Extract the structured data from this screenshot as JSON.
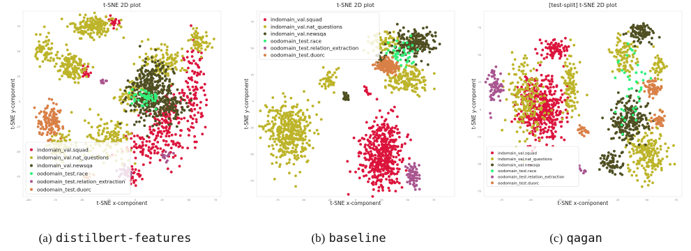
{
  "chart_data": [
    {
      "type": "scatter",
      "title": "t-SNE 2D plot",
      "xlabel": "t-SNE x-component",
      "ylabel": "t-SNE y-component",
      "xlim": [
        -105,
        80
      ],
      "ylim": [
        -95,
        90
      ],
      "x_ticks": [
        -100,
        -75,
        -50,
        -25,
        0,
        25,
        50,
        75
      ],
      "y_ticks": [
        75,
        50,
        25,
        0,
        -25,
        -50,
        -75
      ],
      "legend_loc": "lower-left",
      "caption": {
        "tag": "(a)",
        "name": "distilbert-features"
      },
      "series": [
        {
          "name": "indomain_val.squad",
          "color": "#dc143c",
          "clusters": [
            [
              30,
              -20,
              14,
              30,
              140
            ],
            [
              55,
              10,
              10,
              40,
              110
            ],
            [
              0,
              -75,
              8,
              10,
              25
            ],
            [
              -20,
              80,
              4,
              8,
              15
            ],
            [
              -45,
              30,
              6,
              6,
              18
            ],
            [
              10,
              -45,
              20,
              12,
              80
            ]
          ]
        },
        {
          "name": "indomain_val.nat_questions",
          "color": "#bdb42a",
          "clusters": [
            [
              -40,
              75,
              18,
              10,
              180
            ],
            [
              -60,
              35,
              14,
              14,
              140
            ],
            [
              -85,
              50,
              8,
              14,
              60
            ],
            [
              -25,
              -40,
              20,
              20,
              140
            ],
            [
              -70,
              -45,
              10,
              15,
              70
            ],
            [
              25,
              40,
              20,
              15,
              110
            ],
            [
              60,
              60,
              10,
              12,
              60
            ],
            [
              -5,
              5,
              12,
              12,
              60
            ]
          ]
        },
        {
          "name": "indomain_val.newsqa",
          "color": "#4f4f22",
          "clusters": [
            [
              15,
              10,
              18,
              25,
              380
            ],
            [
              35,
              -5,
              12,
              12,
              80
            ]
          ]
        },
        {
          "name": "oodomain_test.race",
          "color": "#2ef27a",
          "clusters": [
            [
              10,
              5,
              12,
              8,
              45
            ]
          ]
        },
        {
          "name": "oodomain_test.relation_extraction",
          "color": "#a8558f",
          "clusters": [
            [
              -10,
              -70,
              8,
              8,
              28
            ],
            [
              30,
              -55,
              4,
              6,
              12
            ],
            [
              -30,
              20,
              3,
              3,
              8
            ]
          ]
        },
        {
          "name": "oodomain_test.duorc",
          "color": "#d98047",
          "clusters": [
            [
              -80,
              -20,
              11,
              14,
              130
            ],
            [
              -45,
              -75,
              3,
              4,
              10
            ]
          ]
        }
      ]
    },
    {
      "type": "scatter",
      "title": "t-SNE 2D plot",
      "xlabel": "t-SNE x-component",
      "ylabel": "t-SNE y-component",
      "xlim": [
        -95,
        95
      ],
      "ylim": [
        -90,
        85
      ],
      "x_ticks": [
        -75,
        -50,
        -25,
        0,
        25,
        50,
        75
      ],
      "y_ticks": [
        75,
        50,
        25,
        0,
        -25,
        -50,
        -75
      ],
      "legend_loc": "top-left",
      "caption": {
        "tag": "(b)",
        "name": "baseline"
      },
      "series": [
        {
          "name": "indomain_val.squad",
          "color": "#dc143c",
          "clusters": [
            [
              25,
              -50,
              18,
              30,
              480
            ],
            [
              10,
              10,
              3,
              4,
              10
            ]
          ]
        },
        {
          "name": "indomain_val.nat_questions",
          "color": "#bdb42a",
          "clusters": [
            [
              -65,
              -30,
              20,
              25,
              420
            ],
            [
              -25,
              20,
              8,
              8,
              45
            ],
            [
              50,
              20,
              20,
              12,
              160
            ],
            [
              30,
              55,
              15,
              10,
              80
            ]
          ]
        },
        {
          "name": "indomain_val.newsqa",
          "color": "#4f4f22",
          "clusters": [
            [
              55,
              55,
              18,
              12,
              200
            ],
            [
              -10,
              3,
              3,
              4,
              25
            ],
            [
              25,
              40,
              4,
              6,
              20
            ]
          ]
        },
        {
          "name": "oodomain_test.race",
          "color": "#2ef27a",
          "clusters": [
            [
              45,
              45,
              15,
              12,
              45
            ]
          ]
        },
        {
          "name": "oodomain_test.relation_extraction",
          "color": "#a8558f",
          "clusters": [
            [
              55,
              -70,
              5,
              10,
              70
            ]
          ]
        },
        {
          "name": "oodomain_test.duorc",
          "color": "#d98047",
          "clusters": [
            [
              30,
              33,
              10,
              6,
              140
            ]
          ]
        }
      ]
    },
    {
      "type": "scatter",
      "title": "[test-split] t-SNE 2D plot",
      "xlabel": "t-SNE x-component",
      "ylabel": "t-SNE y-component",
      "xlim": [
        -90,
        80
      ],
      "ylim": [
        -80,
        90
      ],
      "x_ticks": [
        -75,
        -50,
        -25,
        0,
        25,
        50,
        75
      ],
      "y_ticks": [
        75,
        50,
        25,
        0,
        -25,
        -50,
        -75
      ],
      "legend_loc": "lower-left",
      "caption": {
        "tag": "(c)",
        "name": "qagan"
      },
      "series": [
        {
          "name": "indomain_val.squad",
          "color": "#dc143c",
          "clusters": [
            [
              -40,
              0,
              18,
              28,
              420
            ],
            [
              -30,
              55,
              10,
              8,
              80
            ]
          ]
        },
        {
          "name": "indomain_val.nat_questions",
          "color": "#bdb42a",
          "clusters": [
            [
              -55,
              10,
              15,
              30,
              200
            ],
            [
              -15,
              20,
              6,
              30,
              100
            ],
            [
              50,
              -40,
              15,
              22,
              200
            ],
            [
              30,
              50,
              10,
              15,
              100
            ],
            [
              60,
              40,
              6,
              10,
              40
            ]
          ]
        },
        {
          "name": "indomain_val.newsqa",
          "color": "#4f4f22",
          "clusters": [
            [
              35,
              -10,
              14,
              20,
              220
            ],
            [
              45,
              70,
              10,
              8,
              90
            ],
            [
              20,
              -50,
              8,
              10,
              60
            ]
          ]
        },
        {
          "name": "oodomain_test.race",
          "color": "#2ef27a",
          "clusters": [
            [
              35,
              20,
              14,
              40,
              40
            ]
          ]
        },
        {
          "name": "oodomain_test.relation_extraction",
          "color": "#a8558f",
          "clusters": [
            [
              -80,
              20,
              6,
              15,
              70
            ],
            [
              -5,
              -55,
              3,
              3,
              8
            ]
          ]
        },
        {
          "name": "oodomain_test.duorc",
          "color": "#d98047",
          "clusters": [
            [
              55,
              20,
              6,
              8,
              60
            ],
            [
              60,
              -10,
              5,
              6,
              40
            ],
            [
              -5,
              -20,
              4,
              5,
              20
            ]
          ]
        }
      ]
    }
  ]
}
